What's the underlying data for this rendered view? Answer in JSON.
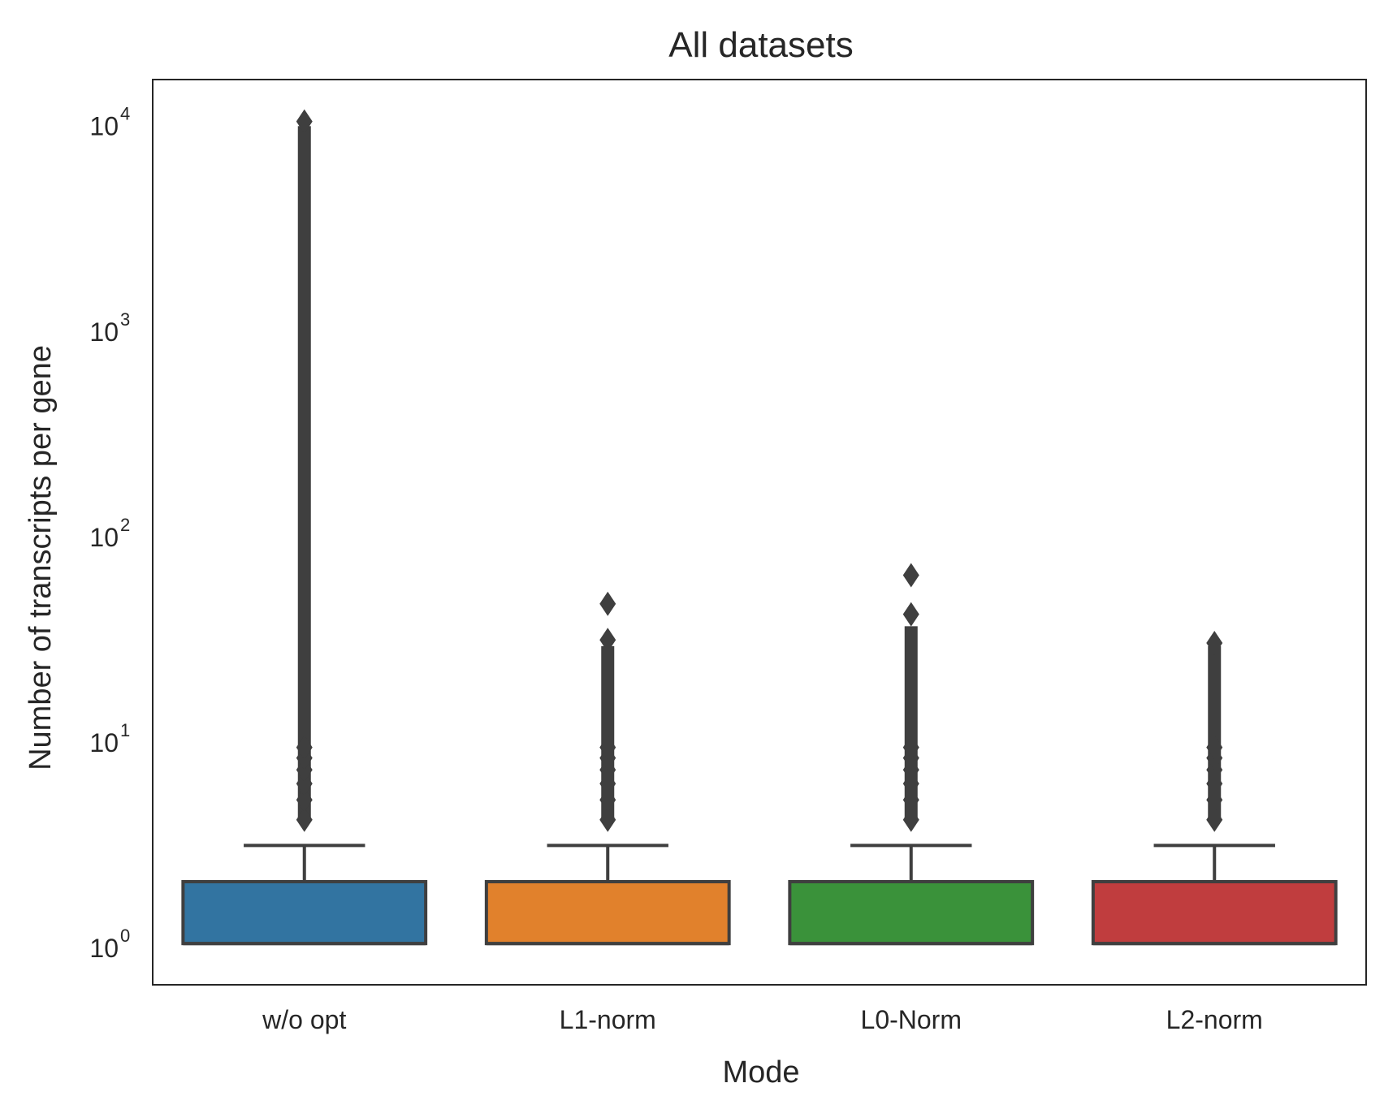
{
  "chart_data": {
    "type": "box",
    "title": "All datasets",
    "xlabel": "Mode",
    "ylabel": "Number of transcripts per gene",
    "yscale": "log",
    "ylim": [
      0.63,
      16000
    ],
    "yticks": [
      {
        "value": 1,
        "base": "10",
        "exp": "0"
      },
      {
        "value": 10,
        "base": "10",
        "exp": "1"
      },
      {
        "value": 100,
        "base": "10",
        "exp": "2"
      },
      {
        "value": 1000,
        "base": "10",
        "exp": "3"
      },
      {
        "value": 10000,
        "base": "10",
        "exp": "4"
      }
    ],
    "grid": false,
    "categories": [
      "w/o opt",
      "L1-norm",
      "L0-Norm",
      "L2-norm"
    ],
    "boxes": [
      {
        "category": "w/o opt",
        "color": "#3274a1",
        "q1": 1,
        "median": 1,
        "q3": 2,
        "whisker_low": 1,
        "whisker_high": 3,
        "outlier_range": [
          4,
          9500
        ],
        "outliers": [
          4,
          5,
          6,
          7,
          8,
          9,
          10000
        ]
      },
      {
        "category": "L1-norm",
        "color": "#e1812c",
        "q1": 1,
        "median": 1,
        "q3": 2,
        "whisker_low": 1,
        "whisker_high": 3,
        "outlier_range": [
          4,
          28
        ],
        "outliers": [
          4,
          5,
          6,
          7,
          8,
          9,
          30,
          45
        ]
      },
      {
        "category": "L0-Norm",
        "color": "#3a923a",
        "q1": 1,
        "median": 1,
        "q3": 2,
        "whisker_low": 1,
        "whisker_high": 3,
        "outlier_range": [
          4,
          35
        ],
        "outliers": [
          4,
          5,
          6,
          7,
          8,
          9,
          40,
          62
        ]
      },
      {
        "category": "L2-norm",
        "color": "#c03d3e",
        "q1": 1,
        "median": 1,
        "q3": 2,
        "whisker_low": 1,
        "whisker_high": 3,
        "outlier_range": [
          4,
          28
        ],
        "outliers": [
          4,
          5,
          6,
          7,
          8,
          9,
          29
        ]
      }
    ]
  }
}
